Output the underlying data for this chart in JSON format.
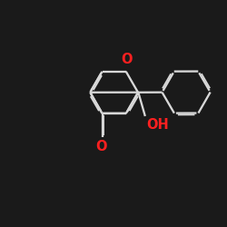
{
  "bg": "#1a1a1a",
  "fg": "#d8d8d8",
  "oc": "#ff2020",
  "lw": 1.65,
  "fs": 9.0,
  "dbl_sep": 0.07,
  "dbl_shorten": 0.08,
  "xlim": [
    0,
    10
  ],
  "ylim": [
    0,
    10
  ],
  "figsize": [
    2.5,
    2.5
  ],
  "dpi": 100
}
